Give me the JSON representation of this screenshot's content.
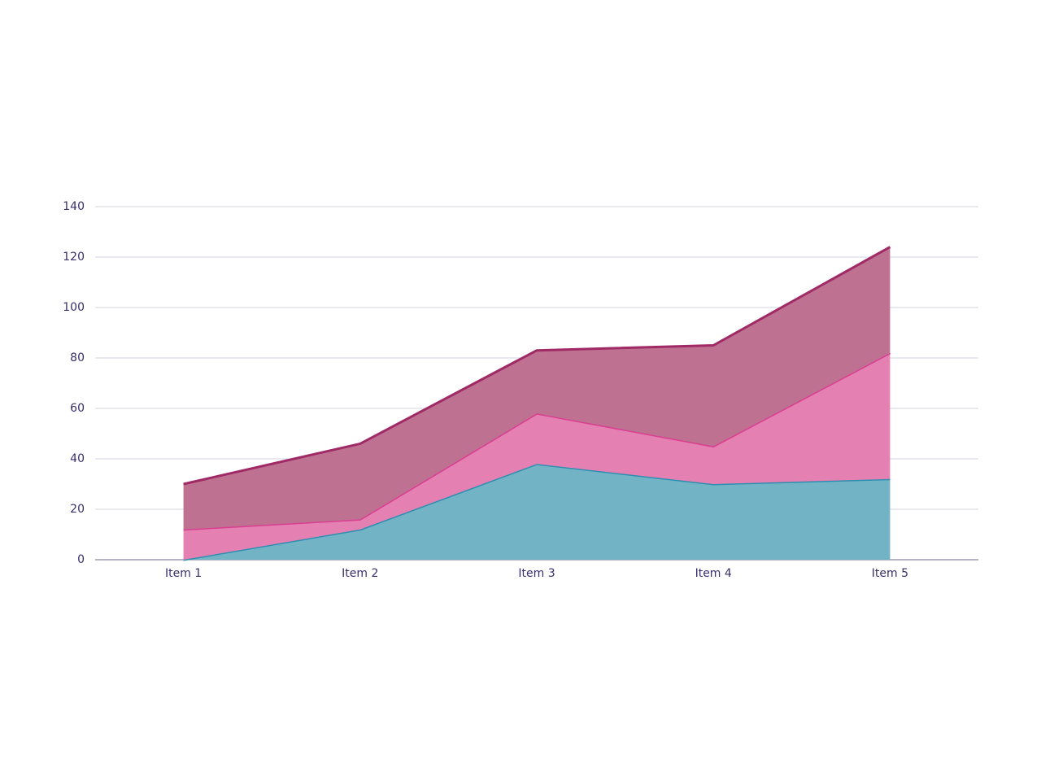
{
  "chart_data": {
    "type": "stacked_area",
    "categories": [
      "Item 1",
      "Item 2",
      "Item 3",
      "Item 4",
      "Item 5"
    ],
    "series": [
      {
        "color": "#2e8fb0",
        "fill": "#72b3c6",
        "values": [
          0,
          12,
          38,
          30,
          32
        ]
      },
      {
        "color": "#d83f91",
        "fill": "#e580b3",
        "values": [
          12,
          4,
          20,
          15,
          50
        ]
      },
      {
        "color": "#a02a66",
        "fill": "#bf7191",
        "values": [
          18,
          30,
          25,
          40,
          42
        ]
      }
    ],
    "ylim": [
      0,
      140
    ],
    "yticks": [
      0,
      20,
      40,
      60,
      80,
      100,
      120,
      140
    ],
    "grid": true
  }
}
